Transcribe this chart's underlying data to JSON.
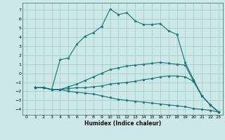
{
  "title": "",
  "xlabel": "Humidex (Indice chaleur)",
  "xlim": [
    -0.5,
    23.5
  ],
  "ylim": [
    -4.6,
    7.8
  ],
  "xticks": [
    0,
    1,
    2,
    3,
    4,
    5,
    6,
    7,
    8,
    9,
    10,
    11,
    12,
    13,
    14,
    15,
    16,
    17,
    18,
    19,
    20,
    21,
    22,
    23
  ],
  "yticks": [
    -4,
    -3,
    -2,
    -1,
    0,
    1,
    2,
    3,
    4,
    5,
    6,
    7
  ],
  "bg_color": "#cce8e8",
  "line_color": "#1a7070",
  "grid_color": "#aacccc",
  "lines": [
    {
      "x": [
        1,
        2,
        3,
        4,
        5,
        6,
        7,
        8,
        9,
        10,
        11,
        12,
        13,
        14,
        15,
        16,
        17,
        18,
        19,
        20,
        21,
        22,
        23
      ],
      "y": [
        -1.6,
        -1.6,
        -1.8,
        1.5,
        1.7,
        3.2,
        4.1,
        4.5,
        5.2,
        7.1,
        6.5,
        6.7,
        5.8,
        5.4,
        5.4,
        5.5,
        4.7,
        4.3,
        1.2,
        -0.7,
        -2.5,
        -3.5,
        -4.3
      ]
    },
    {
      "x": [
        1,
        2,
        3,
        4,
        5,
        6,
        7,
        8,
        9,
        10,
        11,
        12,
        13,
        14,
        15,
        16,
        17,
        18,
        19,
        20,
        21,
        22,
        23
      ],
      "y": [
        -1.6,
        -1.6,
        -1.8,
        -1.8,
        -1.5,
        -1.2,
        -0.8,
        -0.4,
        0.0,
        0.4,
        0.6,
        0.8,
        0.9,
        1.0,
        1.1,
        1.2,
        1.1,
        1.0,
        0.9,
        -0.9,
        -2.5,
        -3.5,
        -4.3
      ]
    },
    {
      "x": [
        1,
        2,
        3,
        4,
        5,
        6,
        7,
        8,
        9,
        10,
        11,
        12,
        13,
        14,
        15,
        16,
        17,
        18,
        19,
        20,
        21,
        22,
        23
      ],
      "y": [
        -1.6,
        -1.6,
        -1.8,
        -1.8,
        -1.7,
        -1.6,
        -1.6,
        -1.5,
        -1.4,
        -1.2,
        -1.1,
        -1.0,
        -0.9,
        -0.7,
        -0.6,
        -0.4,
        -0.3,
        -0.3,
        -0.4,
        -0.9,
        -2.5,
        -3.5,
        -4.3
      ]
    },
    {
      "x": [
        1,
        2,
        3,
        4,
        5,
        6,
        7,
        8,
        9,
        10,
        11,
        12,
        13,
        14,
        15,
        16,
        17,
        18,
        19,
        20,
        21,
        22,
        23
      ],
      "y": [
        -1.6,
        -1.6,
        -1.8,
        -1.8,
        -2.0,
        -2.1,
        -2.2,
        -2.3,
        -2.5,
        -2.7,
        -2.9,
        -3.0,
        -3.1,
        -3.2,
        -3.3,
        -3.4,
        -3.5,
        -3.6,
        -3.7,
        -3.9,
        -4.0,
        -4.1,
        -4.3
      ]
    }
  ]
}
